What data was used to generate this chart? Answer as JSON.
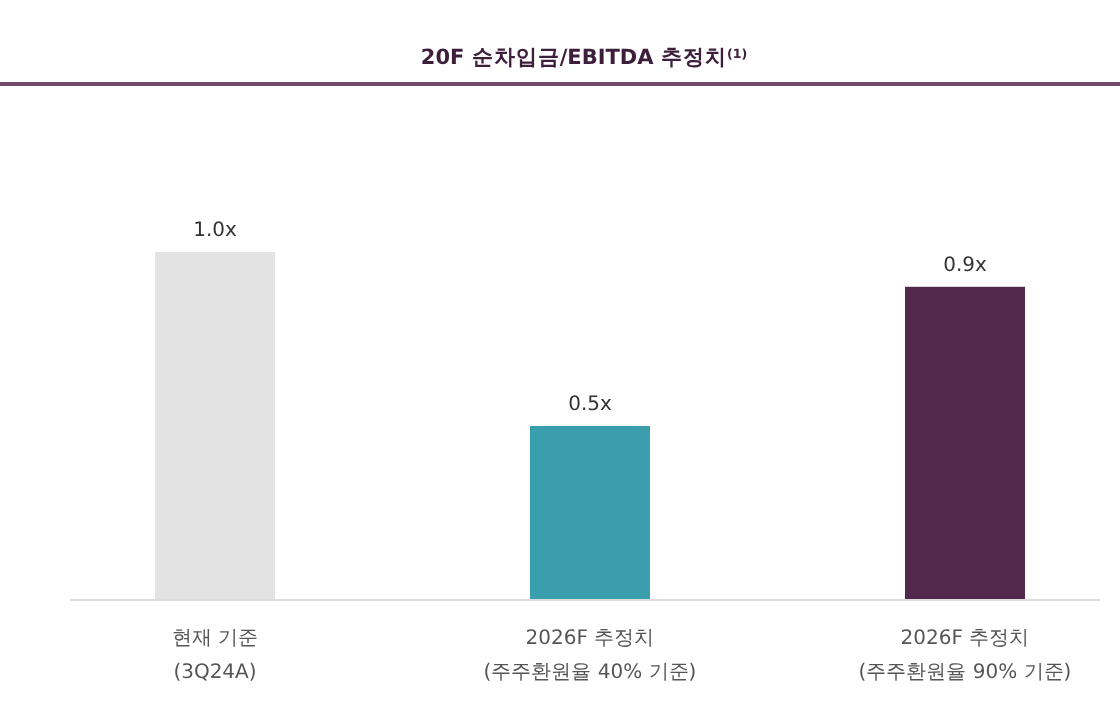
{
  "chart_data": {
    "type": "bar",
    "title": "20F 순차입금/EBITDA 추정치$^{(1)}$",
    "categories": [
      "현재 기준\n(3Q24A)",
      "2026F 추정치\n(주주환원율 40% 기준)",
      "2026F 추정치\n(주주환원율 90% 기준)"
    ],
    "values": [
      1.0,
      0.5,
      0.9
    ],
    "value_labels": [
      "1.0x",
      "0.5x",
      "0.9x"
    ],
    "colors": [
      "#e3e3e3",
      "#3a9eae",
      "#52284f"
    ]
  }
}
